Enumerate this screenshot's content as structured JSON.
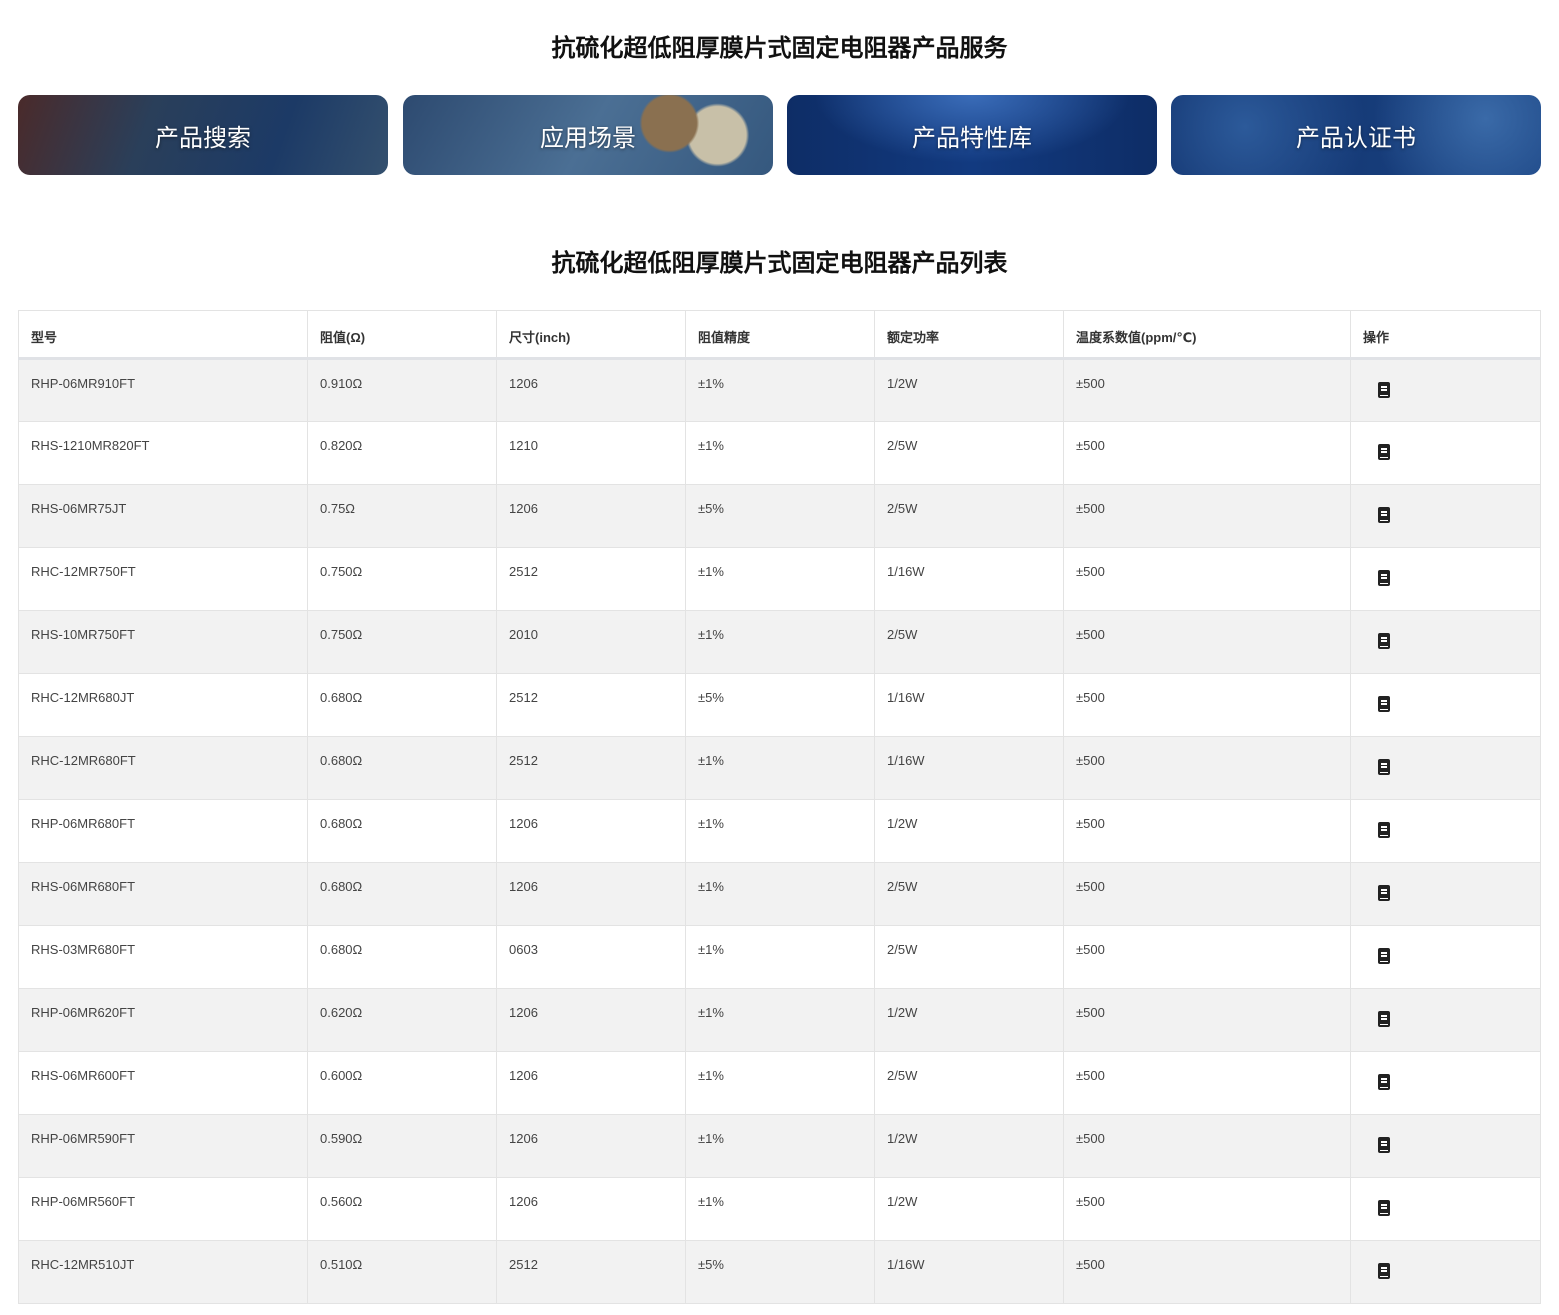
{
  "services_title": "抗硫化超低阻厚膜片式固定电阻器产品服务",
  "banners": [
    "产品搜索",
    "应用场景",
    "产品特性库",
    "产品认证书"
  ],
  "list_title": "抗硫化超低阻厚膜片式固定电阻器产品列表",
  "table": {
    "headers": [
      "型号",
      "阻值(Ω)",
      "尺寸(inch)",
      "阻值精度",
      "额定功率",
      "温度系数值(ppm/℃)",
      "操作"
    ],
    "action_icon": "document-icon",
    "rows": [
      [
        "RHP-06MR910FT",
        "0.910Ω",
        "1206",
        "±1%",
        "1/2W",
        "±500"
      ],
      [
        "RHS-1210MR820FT",
        "0.820Ω",
        "1210",
        "±1%",
        "2/5W",
        "±500"
      ],
      [
        "RHS-06MR75JT",
        "0.75Ω",
        "1206",
        "±5%",
        "2/5W",
        "±500"
      ],
      [
        "RHC-12MR750FT",
        "0.750Ω",
        "2512",
        "±1%",
        "1/16W",
        "±500"
      ],
      [
        "RHS-10MR750FT",
        "0.750Ω",
        "2010",
        "±1%",
        "2/5W",
        "±500"
      ],
      [
        "RHC-12MR680JT",
        "0.680Ω",
        "2512",
        "±5%",
        "1/16W",
        "±500"
      ],
      [
        "RHC-12MR680FT",
        "0.680Ω",
        "2512",
        "±1%",
        "1/16W",
        "±500"
      ],
      [
        "RHP-06MR680FT",
        "0.680Ω",
        "1206",
        "±1%",
        "1/2W",
        "±500"
      ],
      [
        "RHS-06MR680FT",
        "0.680Ω",
        "1206",
        "±1%",
        "2/5W",
        "±500"
      ],
      [
        "RHS-03MR680FT",
        "0.680Ω",
        "0603",
        "±1%",
        "2/5W",
        "±500"
      ],
      [
        "RHP-06MR620FT",
        "0.620Ω",
        "1206",
        "±1%",
        "1/2W",
        "±500"
      ],
      [
        "RHS-06MR600FT",
        "0.600Ω",
        "1206",
        "±1%",
        "2/5W",
        "±500"
      ],
      [
        "RHP-06MR590FT",
        "0.590Ω",
        "1206",
        "±1%",
        "1/2W",
        "±500"
      ],
      [
        "RHP-06MR560FT",
        "0.560Ω",
        "1206",
        "±1%",
        "1/2W",
        "±500"
      ],
      [
        "RHC-12MR510JT",
        "0.510Ω",
        "2512",
        "±5%",
        "1/16W",
        "±500"
      ]
    ]
  }
}
